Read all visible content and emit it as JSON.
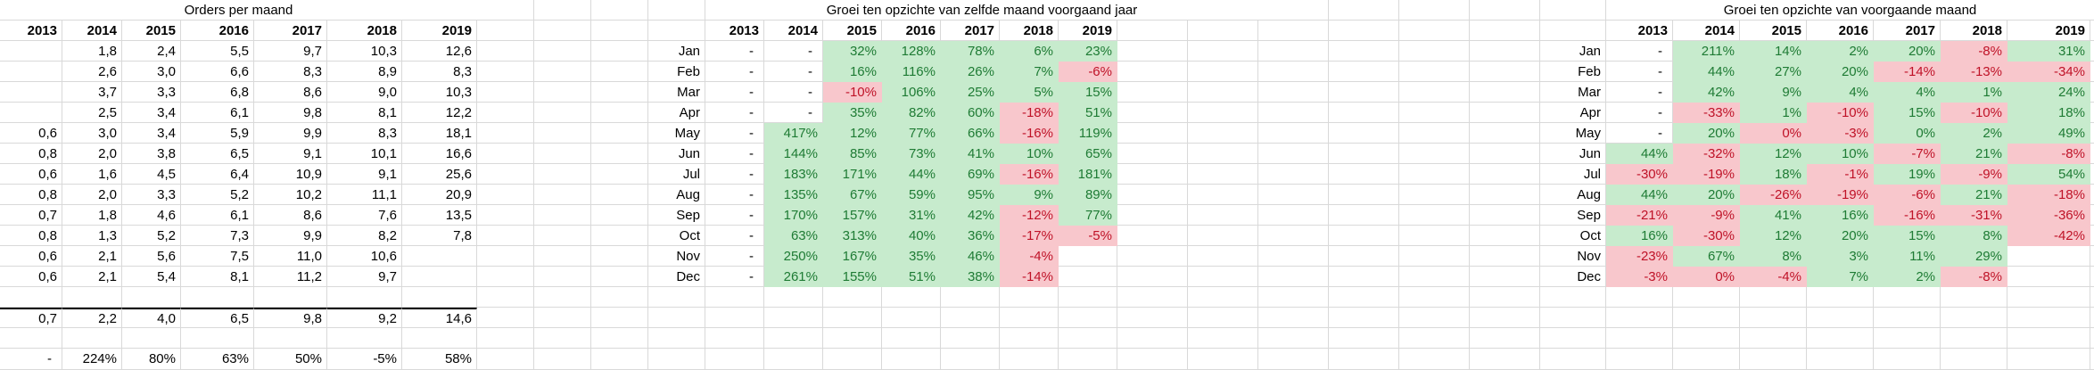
{
  "colors": {
    "green_bg": "#c7ebcd",
    "green_text": "#1e7b34",
    "red_bg": "#f8c7cc",
    "red_text": "#bf1227",
    "gridline": "#d9d9d9"
  },
  "months": [
    "Jan",
    "Feb",
    "Mar",
    "Apr",
    "May",
    "Jun",
    "Jul",
    "Aug",
    "Sep",
    "Oct",
    "Nov",
    "Dec"
  ],
  "years": [
    "2013",
    "2014",
    "2015",
    "2016",
    "2017",
    "2018",
    "2019"
  ],
  "orders_table": {
    "title": "Orders per maand",
    "rows": [
      [
        "",
        "1,8",
        "2,4",
        "5,5",
        "9,7",
        "10,3",
        "12,6"
      ],
      [
        "",
        "2,6",
        "3,0",
        "6,6",
        "8,3",
        "8,9",
        "8,3"
      ],
      [
        "",
        "3,7",
        "3,3",
        "6,8",
        "8,6",
        "9,0",
        "10,3"
      ],
      [
        "",
        "2,5",
        "3,4",
        "6,1",
        "9,8",
        "8,1",
        "12,2"
      ],
      [
        "0,6",
        "3,0",
        "3,4",
        "5,9",
        "9,9",
        "8,3",
        "18,1"
      ],
      [
        "0,8",
        "2,0",
        "3,8",
        "6,5",
        "9,1",
        "10,1",
        "16,6"
      ],
      [
        "0,6",
        "1,6",
        "4,5",
        "6,4",
        "10,9",
        "9,1",
        "25,6"
      ],
      [
        "0,8",
        "2,0",
        "3,3",
        "5,2",
        "10,2",
        "11,1",
        "20,9"
      ],
      [
        "0,7",
        "1,8",
        "4,6",
        "6,1",
        "8,6",
        "7,6",
        "13,5"
      ],
      [
        "0,8",
        "1,3",
        "5,2",
        "7,3",
        "9,9",
        "8,2",
        "7,8"
      ],
      [
        "0,6",
        "2,1",
        "5,6",
        "7,5",
        "11,0",
        "10,6",
        ""
      ],
      [
        "0,6",
        "2,1",
        "5,4",
        "8,1",
        "11,2",
        "9,7",
        ""
      ]
    ],
    "avg_row": [
      "0,7",
      "2,2",
      "4,0",
      "6,5",
      "9,8",
      "9,2",
      "14,6"
    ],
    "growth_row": [
      "-",
      "224%",
      "80%",
      "63%",
      "50%",
      "-5%",
      "58%"
    ]
  },
  "yoy_table": {
    "title": "Groei ten opzichte van zelfde maand voorgaand jaar",
    "rows": [
      [
        "-",
        "-",
        "32%",
        "128%",
        "78%",
        "6%",
        "23%"
      ],
      [
        "-",
        "-",
        "16%",
        "116%",
        "26%",
        "7%",
        "-6%"
      ],
      [
        "-",
        "-",
        "-10%",
        "106%",
        "25%",
        "5%",
        "15%"
      ],
      [
        "-",
        "-",
        "35%",
        "82%",
        "60%",
        "-18%",
        "51%"
      ],
      [
        "-",
        "417%",
        "12%",
        "77%",
        "66%",
        "-16%",
        "119%"
      ],
      [
        "-",
        "144%",
        "85%",
        "73%",
        "41%",
        "10%",
        "65%"
      ],
      [
        "-",
        "183%",
        "171%",
        "44%",
        "69%",
        "-16%",
        "181%"
      ],
      [
        "-",
        "135%",
        "67%",
        "59%",
        "95%",
        "9%",
        "89%"
      ],
      [
        "-",
        "170%",
        "157%",
        "31%",
        "42%",
        "-12%",
        "77%"
      ],
      [
        "-",
        "63%",
        "313%",
        "40%",
        "36%",
        "-17%",
        "-5%"
      ],
      [
        "-",
        "250%",
        "167%",
        "35%",
        "46%",
        "-4%",
        ""
      ],
      [
        "-",
        "261%",
        "155%",
        "51%",
        "38%",
        "-14%",
        ""
      ]
    ],
    "fills": [
      "..ggggg",
      "..ggggr",
      "..rgggg",
      "..gggrg",
      ".ggggrg",
      ".gggggg",
      ".ggggrg",
      ".gggggg",
      ".ggggrg",
      ".ggggrr",
      ".ggggr.",
      ".ggggr."
    ]
  },
  "mom_table": {
    "title": "Groei ten opzichte van voorgaande maand",
    "rows": [
      [
        "-",
        "211%",
        "14%",
        "2%",
        "20%",
        "-8%",
        "31%"
      ],
      [
        "-",
        "44%",
        "27%",
        "20%",
        "-14%",
        "-13%",
        "-34%"
      ],
      [
        "-",
        "42%",
        "9%",
        "4%",
        "4%",
        "1%",
        "24%"
      ],
      [
        "-",
        "-33%",
        "1%",
        "-10%",
        "15%",
        "-10%",
        "18%"
      ],
      [
        "-",
        "20%",
        "0%",
        "-3%",
        "0%",
        "2%",
        "49%"
      ],
      [
        "44%",
        "-32%",
        "12%",
        "10%",
        "-7%",
        "21%",
        "-8%"
      ],
      [
        "-30%",
        "-19%",
        "18%",
        "-1%",
        "19%",
        "-9%",
        "54%"
      ],
      [
        "44%",
        "20%",
        "-26%",
        "-19%",
        "-6%",
        "21%",
        "-18%"
      ],
      [
        "-21%",
        "-9%",
        "41%",
        "16%",
        "-16%",
        "-31%",
        "-36%"
      ],
      [
        "16%",
        "-30%",
        "12%",
        "20%",
        "15%",
        "8%",
        "-42%"
      ],
      [
        "-23%",
        "67%",
        "8%",
        "3%",
        "11%",
        "29%",
        ""
      ],
      [
        "-3%",
        "0%",
        "-4%",
        "7%",
        "2%",
        "-8%",
        ""
      ]
    ],
    "fills": [
      ".ggggrg",
      ".gggrrr",
      ".gggggg",
      ".rgrgrg",
      ".grrggg",
      "grggrgr",
      "rrgrgrg",
      "ggrrrgr",
      "rrggrrr",
      "grggggr",
      "rggggg.",
      "rrrggr."
    ]
  }
}
